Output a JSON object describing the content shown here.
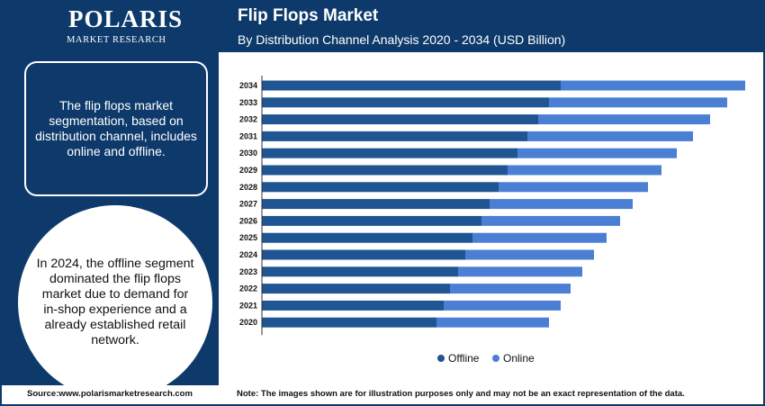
{
  "brand": {
    "name": "POLARIS",
    "tagline": "MARKET RESEARCH"
  },
  "header": {
    "title": "Flip Flops Market",
    "subtitle": "By Distribution Channel Analysis 2020 - 2034 (USD Billion)"
  },
  "sidebar": {
    "box_text": "The flip flops market segmentation, based on distribution channel, includes online and offline.",
    "circle_text": "In 2024, the offline segment dominated the flip flops market due to demand for in-shop experience and a already established retail network."
  },
  "footer": {
    "source": "Source:www.polarismarketresearch.com",
    "note": "Note: The images shown are for illustration purposes only and may not be an exact representation of the data."
  },
  "colors": {
    "offline": "#1f5592",
    "online": "#4a7fd4",
    "brand": "#0e3a6b"
  },
  "chart_data": {
    "type": "bar",
    "orientation": "horizontal",
    "stacked": true,
    "title": "Flip Flops Market",
    "subtitle": "By Distribution Channel Analysis 2020 - 2034 (USD Billion)",
    "categories": [
      "2034",
      "2033",
      "2032",
      "2031",
      "2030",
      "2029",
      "2028",
      "2027",
      "2026",
      "2025",
      "2024",
      "2023",
      "2022",
      "2021",
      "2020"
    ],
    "series": [
      {
        "name": "Offline",
        "values": [
          33.2,
          31.9,
          30.7,
          29.5,
          28.4,
          27.3,
          26.3,
          25.3,
          24.4,
          23.4,
          22.6,
          21.8,
          20.9,
          20.2,
          19.4
        ]
      },
      {
        "name": "Online",
        "values": [
          20.5,
          19.8,
          19.1,
          18.4,
          17.7,
          17.1,
          16.6,
          15.9,
          15.4,
          14.9,
          14.3,
          13.8,
          13.4,
          13.0,
          12.5
        ]
      }
    ],
    "legend": {
      "position": "bottom",
      "entries": [
        "Offline",
        "Online"
      ]
    },
    "grid": false
  }
}
